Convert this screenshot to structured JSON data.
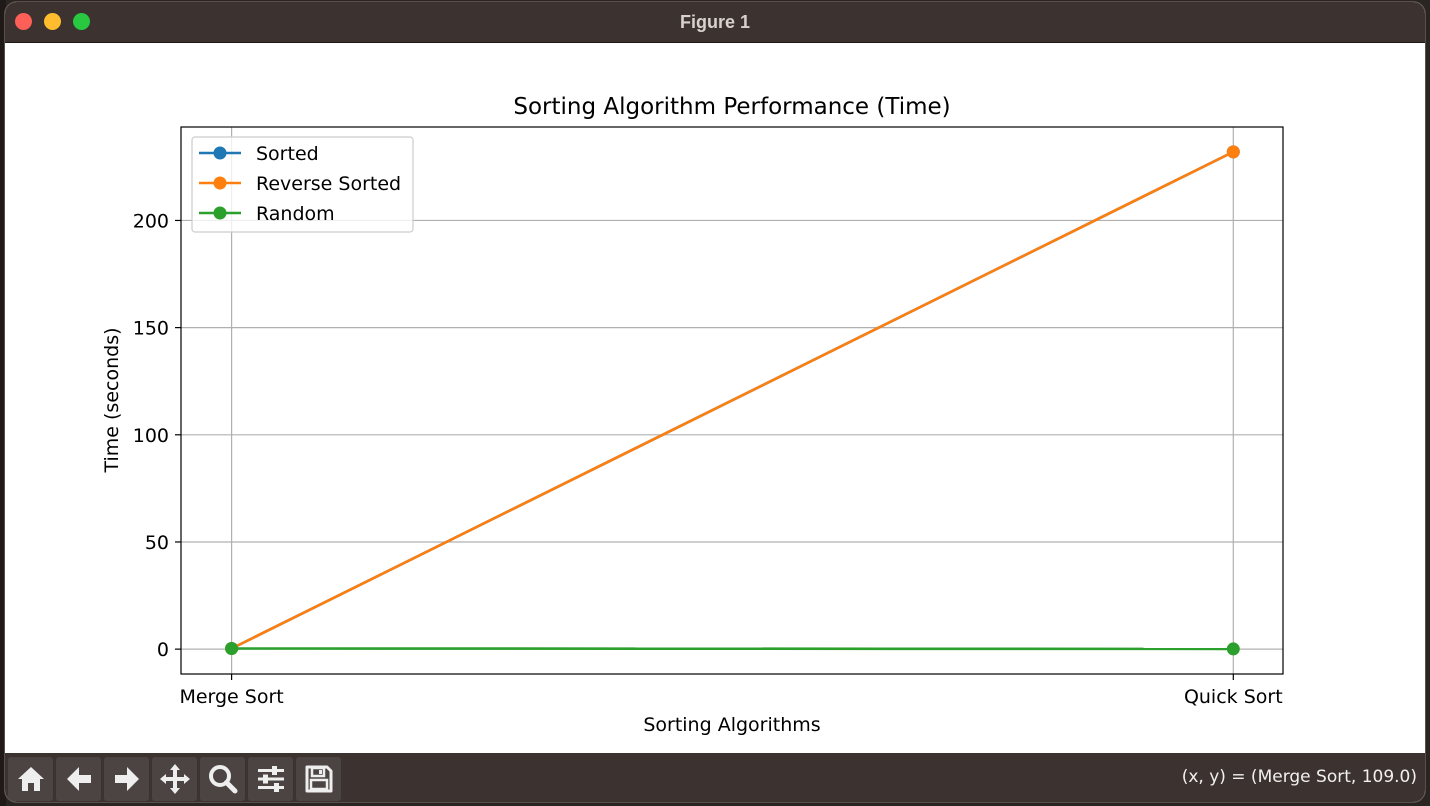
{
  "window": {
    "title": "Figure 1"
  },
  "toolbar": {
    "buttons": [
      {
        "name": "home-button",
        "icon": "home-icon"
      },
      {
        "name": "back-button",
        "icon": "arrow-left-icon"
      },
      {
        "name": "forward-button",
        "icon": "arrow-right-icon"
      },
      {
        "name": "pan-button",
        "icon": "move-icon"
      },
      {
        "name": "zoom-button",
        "icon": "magnifier-icon"
      },
      {
        "name": "configure-subplots-button",
        "icon": "sliders-icon"
      },
      {
        "name": "save-button",
        "icon": "floppy-disk-icon"
      }
    ],
    "coordinates": "(x, y) = (Merge Sort, 109.0)"
  },
  "colors": {
    "sorted": "#1f77b4",
    "reverse_sorted": "#ff7f0e",
    "random": "#2ca02c",
    "toolbar_bg": "#3c3331",
    "grid": "#b0b0b0"
  },
  "chart_data": {
    "type": "line",
    "title": "Sorting Algorithm Performance (Time)",
    "xlabel": "Sorting Algorithms",
    "ylabel": "Time (seconds)",
    "categories": [
      "Merge Sort",
      "Quick Sort"
    ],
    "ylim": [
      -11.6,
      243.6
    ],
    "yticks": [
      0,
      50,
      100,
      150,
      200
    ],
    "ytick_labels": [
      "0",
      "50",
      "100",
      "150",
      "200"
    ],
    "grid": true,
    "legend_position": "upper left",
    "series": [
      {
        "name": "Sorted",
        "values": [
          0.3,
          232.0
        ],
        "color_key": "sorted"
      },
      {
        "name": "Reverse Sorted",
        "values": [
          0.3,
          232.0
        ],
        "color_key": "reverse_sorted"
      },
      {
        "name": "Random",
        "values": [
          0.3,
          0.1
        ],
        "color_key": "random"
      }
    ]
  }
}
